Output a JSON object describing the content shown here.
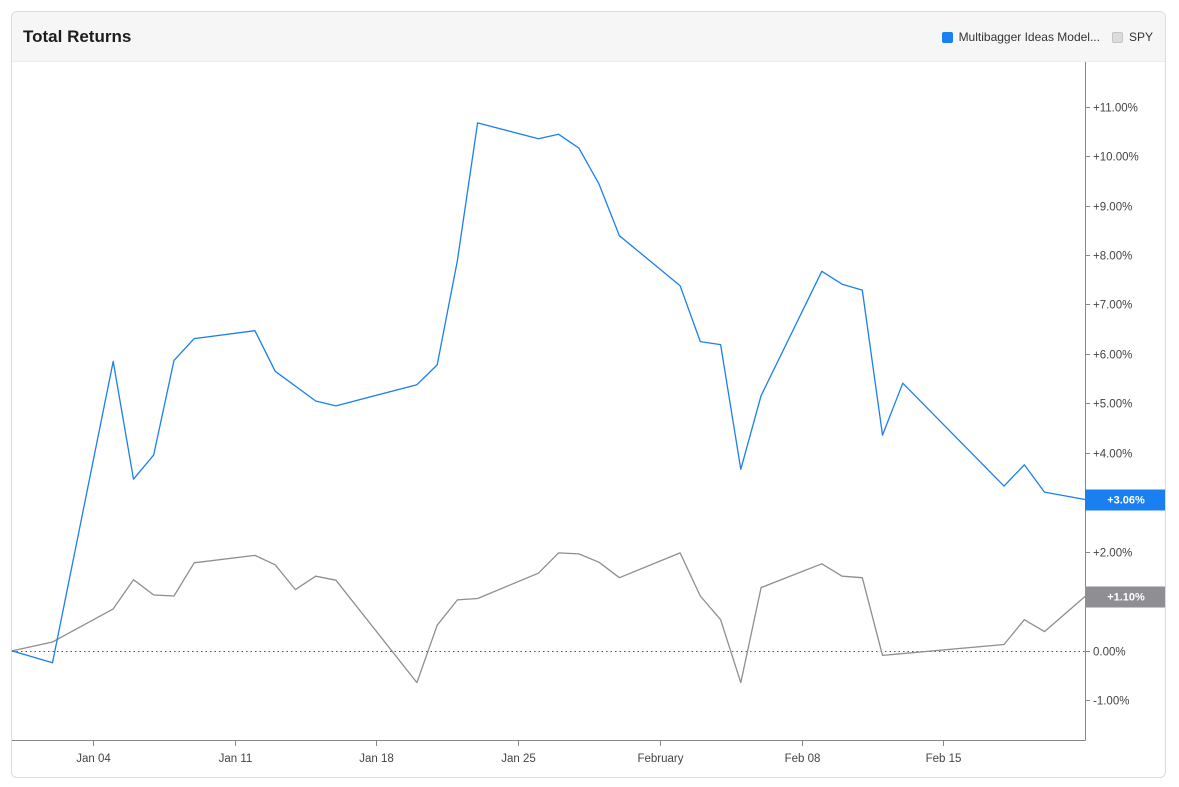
{
  "header": {
    "title": "Total Returns",
    "legend": [
      {
        "label": "Multibagger Ideas Model...",
        "color": "#1a7ff0"
      },
      {
        "label": "SPY",
        "color": "#dcdcdc"
      }
    ]
  },
  "chart_data": {
    "type": "line",
    "title": "Total Returns",
    "y_unit": "%",
    "ylim": [
      -1.8,
      11.9
    ],
    "y_ticks": [
      "+11.00%",
      "+10.00%",
      "+9.00%",
      "+8.00%",
      "+7.00%",
      "+6.00%",
      "+5.00%",
      "+4.00%",
      "+3.00%",
      "+2.00%",
      "+1.00%",
      "0.00%",
      "-1.00%"
    ],
    "y_tick_values": [
      11,
      10,
      9,
      8,
      7,
      6,
      5,
      4,
      3,
      2,
      1,
      0,
      -1
    ],
    "x_range": [
      "2020-12-31",
      "2021-02-22"
    ],
    "x_ticks": [
      {
        "date": "2021-01-04",
        "label": "Jan 04"
      },
      {
        "date": "2021-01-11",
        "label": "Jan 11"
      },
      {
        "date": "2021-01-18",
        "label": "Jan 18"
      },
      {
        "date": "2021-01-25",
        "label": "Jan 25"
      },
      {
        "date": "2021-02-01",
        "label": "February"
      },
      {
        "date": "2021-02-08",
        "label": "Feb 08"
      },
      {
        "date": "2021-02-15",
        "label": "Feb 15"
      }
    ],
    "baseline": {
      "value": 0,
      "style": "dotted"
    },
    "series": [
      {
        "name": "Multibagger Ideas Model...",
        "color": "#1a7ff0",
        "end_label": "+3.06%",
        "points": [
          {
            "x": "2020-12-31",
            "y": 0.0
          },
          {
            "x": "2021-01-02",
            "y": -0.24
          },
          {
            "x": "2021-01-05",
            "y": 5.85
          },
          {
            "x": "2021-01-06",
            "y": 3.47
          },
          {
            "x": "2021-01-07",
            "y": 3.96
          },
          {
            "x": "2021-01-08",
            "y": 5.87
          },
          {
            "x": "2021-01-09",
            "y": 6.31
          },
          {
            "x": "2021-01-12",
            "y": 6.47
          },
          {
            "x": "2021-01-13",
            "y": 5.65
          },
          {
            "x": "2021-01-15",
            "y": 5.05
          },
          {
            "x": "2021-01-16",
            "y": 4.95
          },
          {
            "x": "2021-01-20",
            "y": 5.38
          },
          {
            "x": "2021-01-21",
            "y": 5.78
          },
          {
            "x": "2021-01-22",
            "y": 7.89
          },
          {
            "x": "2021-01-23",
            "y": 10.67
          },
          {
            "x": "2021-01-26",
            "y": 10.35
          },
          {
            "x": "2021-01-27",
            "y": 10.44
          },
          {
            "x": "2021-01-28",
            "y": 10.16
          },
          {
            "x": "2021-01-29",
            "y": 9.43
          },
          {
            "x": "2021-01-30",
            "y": 8.39
          },
          {
            "x": "2021-02-02",
            "y": 7.38
          },
          {
            "x": "2021-02-03",
            "y": 6.25
          },
          {
            "x": "2021-02-04",
            "y": 6.19
          },
          {
            "x": "2021-02-05",
            "y": 3.67
          },
          {
            "x": "2021-02-06",
            "y": 5.16
          },
          {
            "x": "2021-02-09",
            "y": 7.67
          },
          {
            "x": "2021-02-10",
            "y": 7.41
          },
          {
            "x": "2021-02-11",
            "y": 7.29
          },
          {
            "x": "2021-02-12",
            "y": 4.36
          },
          {
            "x": "2021-02-13",
            "y": 5.41
          },
          {
            "x": "2021-02-18",
            "y": 3.33
          },
          {
            "x": "2021-02-19",
            "y": 3.76
          },
          {
            "x": "2021-02-20",
            "y": 3.21
          },
          {
            "x": "2021-02-22",
            "y": 3.06
          }
        ]
      },
      {
        "name": "SPY",
        "color": "#8e8e93",
        "end_label": "+1.10%",
        "points": [
          {
            "x": "2020-12-31",
            "y": 0.0
          },
          {
            "x": "2021-01-02",
            "y": 0.18
          },
          {
            "x": "2021-01-05",
            "y": 0.85
          },
          {
            "x": "2021-01-06",
            "y": 1.44
          },
          {
            "x": "2021-01-07",
            "y": 1.13
          },
          {
            "x": "2021-01-08",
            "y": 1.11
          },
          {
            "x": "2021-01-09",
            "y": 1.78
          },
          {
            "x": "2021-01-12",
            "y": 1.93
          },
          {
            "x": "2021-01-13",
            "y": 1.74
          },
          {
            "x": "2021-01-14",
            "y": 1.24
          },
          {
            "x": "2021-01-15",
            "y": 1.51
          },
          {
            "x": "2021-01-16",
            "y": 1.43
          },
          {
            "x": "2021-01-20",
            "y": -0.64
          },
          {
            "x": "2021-01-21",
            "y": 0.52
          },
          {
            "x": "2021-01-22",
            "y": 1.03
          },
          {
            "x": "2021-01-23",
            "y": 1.06
          },
          {
            "x": "2021-01-26",
            "y": 1.57
          },
          {
            "x": "2021-01-27",
            "y": 1.98
          },
          {
            "x": "2021-01-28",
            "y": 1.96
          },
          {
            "x": "2021-01-29",
            "y": 1.79
          },
          {
            "x": "2021-01-30",
            "y": 1.48
          },
          {
            "x": "2021-02-02",
            "y": 1.98
          },
          {
            "x": "2021-02-03",
            "y": 1.11
          },
          {
            "x": "2021-02-04",
            "y": 0.63
          },
          {
            "x": "2021-02-05",
            "y": -0.64
          },
          {
            "x": "2021-02-06",
            "y": 1.28
          },
          {
            "x": "2021-02-09",
            "y": 1.76
          },
          {
            "x": "2021-02-10",
            "y": 1.51
          },
          {
            "x": "2021-02-11",
            "y": 1.48
          },
          {
            "x": "2021-02-12",
            "y": -0.09
          },
          {
            "x": "2021-02-18",
            "y": 0.13
          },
          {
            "x": "2021-02-19",
            "y": 0.63
          },
          {
            "x": "2021-02-20",
            "y": 0.39
          },
          {
            "x": "2021-02-22",
            "y": 1.1
          }
        ]
      }
    ],
    "grid": false,
    "legend_position": "top-right",
    "y_axis_position": "right"
  }
}
